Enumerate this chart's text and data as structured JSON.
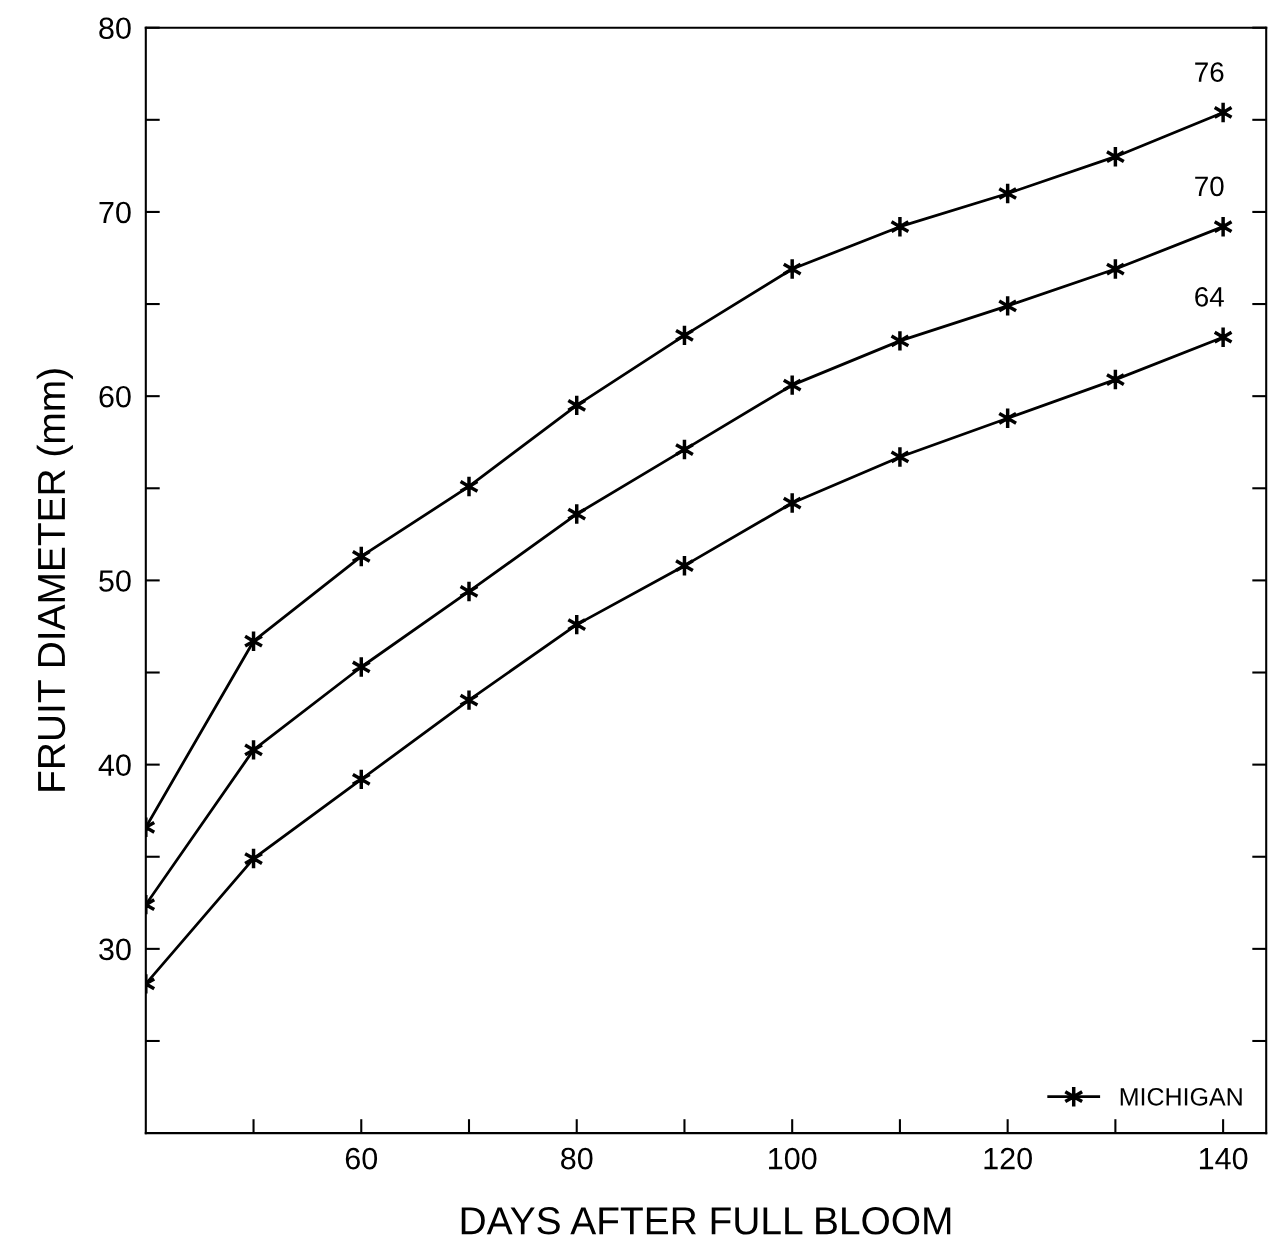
{
  "chart_data": {
    "type": "line",
    "xlabel": "DAYS AFTER FULL BLOOM",
    "ylabel": "FRUIT DIAMETER (mm)",
    "x": [
      40,
      50,
      60,
      70,
      80,
      90,
      100,
      110,
      120,
      130,
      140
    ],
    "series": [
      {
        "name": "MICHIGAN",
        "color": "#000000",
        "values": [
          36.6,
          46.7,
          51.3,
          55.1,
          59.5,
          63.3,
          66.9,
          69.2,
          71.0,
          73.0,
          75.4
        ]
      },
      {
        "color": "#000000",
        "values": [
          32.4,
          40.8,
          45.3,
          49.4,
          53.6,
          57.1,
          60.6,
          63.0,
          64.9,
          66.9,
          69.2
        ]
      },
      {
        "color": "#000000",
        "values": [
          28.1,
          34.9,
          39.2,
          43.5,
          47.6,
          50.8,
          54.2,
          56.7,
          58.8,
          60.9,
          63.2
        ]
      }
    ],
    "annotations": [
      "76",
      "70",
      "64"
    ],
    "xlim": [
      40,
      144
    ],
    "ylim": [
      20,
      80
    ],
    "xticks": [
      {
        "value": 50,
        "label": null
      },
      60,
      {
        "value": 70,
        "label": null
      },
      80,
      {
        "value": 90,
        "label": null
      },
      100,
      {
        "value": 110,
        "label": null
      },
      120,
      {
        "value": 130,
        "label": null
      },
      140
    ],
    "yticks": [
      {
        "value": 25,
        "label": null
      },
      30,
      {
        "value": 35,
        "label": null
      },
      40,
      {
        "value": 45,
        "label": null
      },
      50,
      {
        "value": 55,
        "label": null
      },
      60,
      {
        "value": 65,
        "label": null
      },
      70,
      {
        "value": 75,
        "label": null
      },
      80
    ],
    "marker": "cross",
    "line_style": "solid",
    "legend": "bottom right",
    "grid": false
  }
}
